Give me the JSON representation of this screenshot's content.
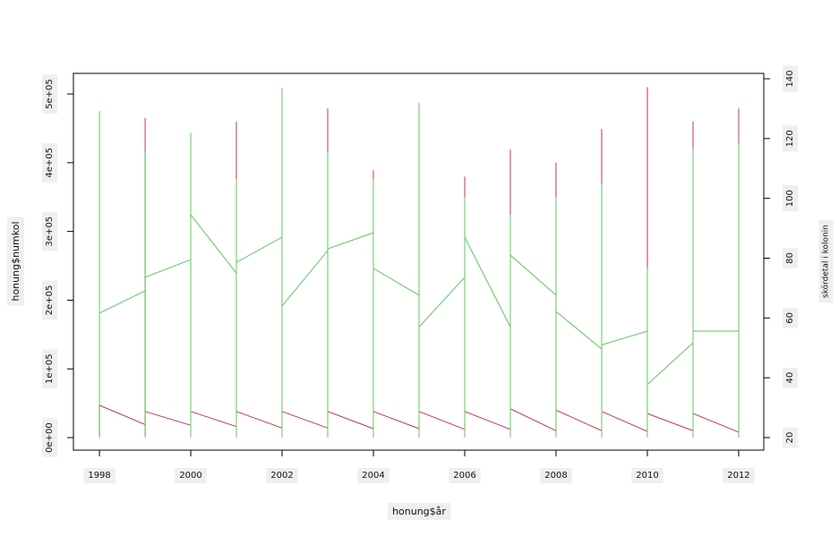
{
  "chart_data": {
    "type": "line",
    "x_label": "honung$år",
    "y_label": "honung$numkol",
    "y2_label": "skördetal i kolonin",
    "x": [
      1998,
      1998,
      1998,
      1998,
      1999,
      1999,
      1999,
      1999,
      2000,
      2000,
      2000,
      2000,
      2001,
      2001,
      2001,
      2001,
      2002,
      2002,
      2002,
      2002,
      2003,
      2003,
      2003,
      2003,
      2004,
      2004,
      2004,
      2004,
      2005,
      2005,
      2005,
      2005,
      2006,
      2006,
      2006,
      2006,
      2007,
      2007,
      2007,
      2007,
      2008,
      2008,
      2008,
      2008,
      2009,
      2009,
      2009,
      2009,
      2010,
      2010,
      2010,
      2010,
      2011,
      2011,
      2011,
      2011,
      2012,
      2012,
      2012,
      2012
    ],
    "series": [
      {
        "color": "#c0306a",
        "values": [
          47000,
          3000,
          47000,
          47000,
          19000,
          3000,
          465000,
          38000,
          18000,
          3000,
          50000,
          38000,
          16000,
          3000,
          460000,
          38000,
          14000,
          3000,
          83000,
          38000,
          14000,
          3000,
          479000,
          38000,
          13000,
          3000,
          389000,
          38000,
          13000,
          3000,
          64000,
          38000,
          12000,
          3000,
          380000,
          38000,
          12000,
          3000,
          419000,
          42000,
          10000,
          3000,
          400000,
          40000,
          10000,
          3000,
          449000,
          38000,
          9000,
          3000,
          510000,
          35000,
          10000,
          3000,
          460000,
          35000,
          8000,
          3000,
          479000,
          479000
        ]
      },
      {
        "color": "#5cc85c",
        "axis": "y2",
        "values": [
          61.6,
          20,
          129.2,
          61.6,
          69.1,
          20,
          115.5,
          73.6,
          79.5,
          20,
          122,
          94.5,
          75,
          20,
          106.5,
          78.6,
          87,
          20,
          137,
          64,
          82.5,
          20,
          115.5,
          83.1,
          88.5,
          20,
          106.5,
          76.6,
          67.6,
          20,
          132,
          57,
          73.6,
          20,
          100.5,
          87,
          57,
          20,
          94.5,
          81,
          67.6,
          20,
          100.5,
          62.2,
          49.6,
          20,
          105,
          51,
          55.6,
          20,
          76.6,
          37.7,
          51.7,
          20,
          117,
          55.6,
          55.6,
          20,
          118.4,
          118.4
        ]
      }
    ],
    "xlim": [
      1997.43,
      2012.55
    ],
    "xticks": [
      1998,
      2000,
      2002,
      2004,
      2006,
      2008,
      2010,
      2012
    ],
    "ylim": [
      -18200,
      530000
    ],
    "yticks": [
      {
        "value": 0,
        "label": "0e+00"
      },
      {
        "value": 100000,
        "label": "1e+05"
      },
      {
        "value": 200000,
        "label": "2e+05"
      },
      {
        "value": 300000,
        "label": "3e+05"
      },
      {
        "value": 400000,
        "label": "4e+05"
      },
      {
        "value": 500000,
        "label": "5e+05"
      }
    ],
    "y2lim": [
      15.8,
      141.8
    ],
    "y2ticks": [
      20,
      40,
      60,
      80,
      100,
      120,
      140
    ]
  }
}
